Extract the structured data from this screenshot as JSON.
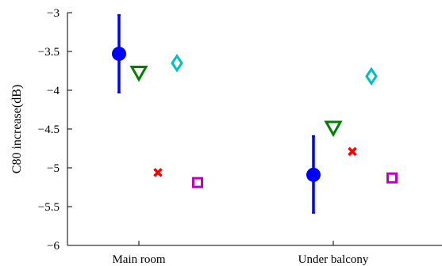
{
  "chart_data": {
    "type": "scatter",
    "title": "",
    "xlabel": "",
    "ylabel": "C80 increase(dB)",
    "categories": [
      "Main room",
      "Under balcony"
    ],
    "ylim": [
      -6,
      -3
    ],
    "yticks": [
      -3,
      -3.5,
      -4,
      -4.5,
      -5,
      -5.5,
      -6
    ],
    "ytick_labels": [
      "−3",
      "−3.5",
      "−4",
      "−4.5",
      "−5",
      "−5.5",
      "−6"
    ],
    "grid": false,
    "series": [
      {
        "marker": "filled-circle-with-errorbar",
        "color": "#0000ff",
        "values": [
          -3.53,
          -5.09
        ],
        "error_low": [
          -4.03,
          -5.58
        ],
        "error_high": [
          -3.03,
          -4.59
        ]
      },
      {
        "marker": "triangle-down",
        "color": "#008000",
        "values": [
          -3.77,
          -4.48
        ]
      },
      {
        "marker": "diamond",
        "color": "#00bfbf",
        "values": [
          -3.65,
          -3.82
        ]
      },
      {
        "marker": "x",
        "color": "#ff0000",
        "values": [
          -5.06,
          -4.79
        ]
      },
      {
        "marker": "square",
        "color": "#bf00bf",
        "values": [
          -5.19,
          -5.13
        ]
      }
    ]
  }
}
